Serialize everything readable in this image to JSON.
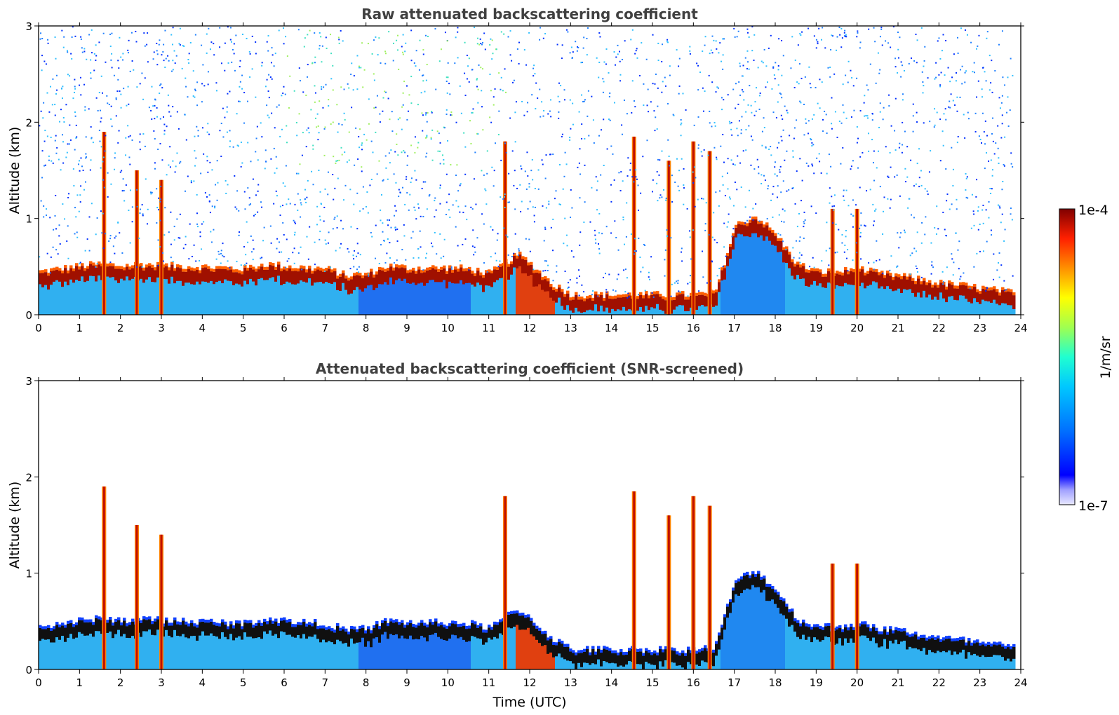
{
  "chart_data": [
    {
      "type": "heatmap",
      "title": "Raw attenuated backscattering coefficient",
      "xlabel": "",
      "ylabel": "Altitude (km)",
      "xlim": [
        0,
        24
      ],
      "ylim": [
        0,
        3
      ],
      "x_ticks": [
        "0",
        "1",
        "2",
        "3",
        "4",
        "5",
        "6",
        "7",
        "8",
        "9",
        "10",
        "11",
        "12",
        "13",
        "14",
        "15",
        "16",
        "17",
        "18",
        "19",
        "20",
        "21",
        "22",
        "23",
        "24"
      ],
      "y_ticks": [
        "0",
        "1",
        "2",
        "3"
      ],
      "layer_top_km": [
        [
          0,
          0.42
        ],
        [
          0.5,
          0.45
        ],
        [
          1,
          0.48
        ],
        [
          1.5,
          0.5
        ],
        [
          2,
          0.48
        ],
        [
          2.5,
          0.5
        ],
        [
          3,
          0.48
        ],
        [
          3.5,
          0.48
        ],
        [
          4,
          0.47
        ],
        [
          4.5,
          0.46
        ],
        [
          5,
          0.45
        ],
        [
          5.5,
          0.5
        ],
        [
          6,
          0.48
        ],
        [
          6.5,
          0.46
        ],
        [
          7,
          0.45
        ],
        [
          7.5,
          0.38
        ],
        [
          8,
          0.4
        ],
        [
          8.5,
          0.48
        ],
        [
          9,
          0.46
        ],
        [
          9.5,
          0.46
        ],
        [
          10,
          0.46
        ],
        [
          10.5,
          0.45
        ],
        [
          11,
          0.4
        ],
        [
          11.5,
          0.55
        ],
        [
          11.7,
          0.6
        ],
        [
          12,
          0.5
        ],
        [
          12.5,
          0.3
        ],
        [
          13,
          0.18
        ],
        [
          13.5,
          0.18
        ],
        [
          14,
          0.18
        ],
        [
          14.5,
          0.18
        ],
        [
          15,
          0.18
        ],
        [
          15.5,
          0.18
        ],
        [
          16,
          0.18
        ],
        [
          16.5,
          0.2
        ],
        [
          17,
          0.9
        ],
        [
          17.5,
          1.0
        ],
        [
          18,
          0.8
        ],
        [
          18.5,
          0.5
        ],
        [
          19,
          0.42
        ],
        [
          19.5,
          0.42
        ],
        [
          20,
          0.45
        ],
        [
          20.5,
          0.4
        ],
        [
          21,
          0.38
        ],
        [
          21.5,
          0.34
        ],
        [
          22,
          0.3
        ],
        [
          22.5,
          0.28
        ],
        [
          23,
          0.25
        ],
        [
          23.5,
          0.22
        ],
        [
          23.8,
          0.2
        ]
      ],
      "cloud_spikes": [
        {
          "x": 1.6,
          "top_km": 1.9
        },
        {
          "x": 2.4,
          "top_km": 1.5
        },
        {
          "x": 3.0,
          "top_km": 1.4
        },
        {
          "x": 11.4,
          "top_km": 1.8
        },
        {
          "x": 14.55,
          "top_km": 1.85
        },
        {
          "x": 15.4,
          "top_km": 1.6
        },
        {
          "x": 16.0,
          "top_km": 1.8
        },
        {
          "x": 16.4,
          "top_km": 1.7
        },
        {
          "x": 19.4,
          "top_km": 1.1
        },
        {
          "x": 20.0,
          "top_km": 1.1
        }
      ]
    },
    {
      "type": "heatmap",
      "title": "Attenuated backscattering coefficient (SNR-screened)",
      "xlabel": "Time (UTC)",
      "ylabel": "Altitude (km)",
      "xlim": [
        0,
        24
      ],
      "ylim": [
        0,
        3
      ],
      "x_ticks": [
        "0",
        "1",
        "2",
        "3",
        "4",
        "5",
        "6",
        "7",
        "8",
        "9",
        "10",
        "11",
        "12",
        "13",
        "14",
        "15",
        "16",
        "17",
        "18",
        "19",
        "20",
        "21",
        "22",
        "23",
        "24"
      ],
      "y_ticks": [
        "0",
        "1",
        "2",
        "3"
      ]
    }
  ],
  "colorbar": {
    "label": "1/m/sr",
    "max_label": "1e-4",
    "min_label": "1e-7",
    "colors": [
      "#e8e8ff",
      "#a0a0ff",
      "#0000ff",
      "#0060ff",
      "#00a0ff",
      "#00d8e0",
      "#40ffb0",
      "#b0ff40",
      "#ffff00",
      "#ffa000",
      "#ff4000",
      "#d00000",
      "#800000"
    ]
  }
}
